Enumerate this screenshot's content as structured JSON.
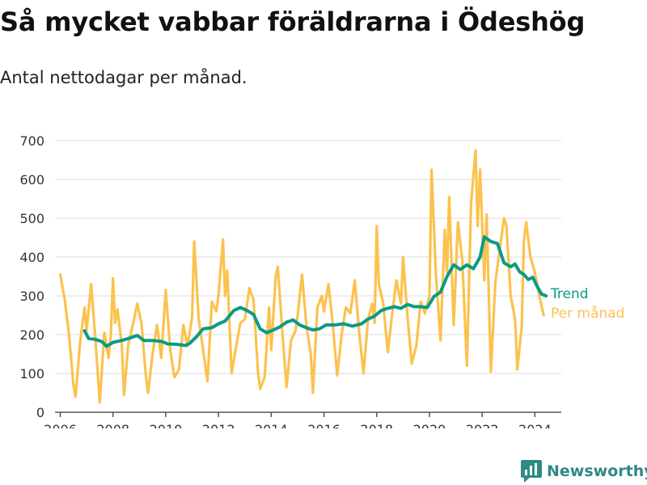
{
  "title": "Så mycket vabbar föräldrarna i Ödeshög",
  "subtitle": "Antal nettodagar per månad.",
  "brand": {
    "name": "Newsworthy"
  },
  "colors": {
    "monthly": "#fcc24e",
    "trend": "#0b9a88",
    "brand": "#2e8a84",
    "grid": "#dcdcdc",
    "axis": "#555555"
  },
  "chart_data": {
    "type": "line",
    "xlabel": "",
    "ylabel": "",
    "ylim": [
      0,
      700
    ],
    "yticks": [
      0,
      100,
      200,
      300,
      400,
      500,
      600,
      700
    ],
    "xlim": [
      2005.8,
      2025.0
    ],
    "xticks": [
      2006,
      2008,
      2010,
      2012,
      2014,
      2016,
      2018,
      2020,
      2022,
      2024
    ],
    "legend_placement": "right end of lines",
    "grid": "horizontal",
    "series": [
      {
        "name": "Per månad",
        "points": [
          [
            2006.0,
            355
          ],
          [
            2006.17,
            290
          ],
          [
            2006.33,
            200
          ],
          [
            2006.5,
            70
          ],
          [
            2006.58,
            40
          ],
          [
            2006.75,
            180
          ],
          [
            2006.92,
            270
          ],
          [
            2007.0,
            210
          ],
          [
            2007.17,
            330
          ],
          [
            2007.33,
            190
          ],
          [
            2007.5,
            25
          ],
          [
            2007.67,
            205
          ],
          [
            2007.83,
            140
          ],
          [
            2007.92,
            200
          ],
          [
            2008.0,
            345
          ],
          [
            2008.08,
            230
          ],
          [
            2008.17,
            265
          ],
          [
            2008.33,
            175
          ],
          [
            2008.42,
            45
          ],
          [
            2008.58,
            175
          ],
          [
            2008.75,
            225
          ],
          [
            2008.92,
            280
          ],
          [
            2009.08,
            230
          ],
          [
            2009.25,
            90
          ],
          [
            2009.33,
            50
          ],
          [
            2009.5,
            150
          ],
          [
            2009.67,
            225
          ],
          [
            2009.83,
            140
          ],
          [
            2010.0,
            315
          ],
          [
            2010.17,
            160
          ],
          [
            2010.33,
            90
          ],
          [
            2010.5,
            110
          ],
          [
            2010.67,
            225
          ],
          [
            2010.83,
            170
          ],
          [
            2011.0,
            245
          ],
          [
            2011.08,
            440
          ],
          [
            2011.25,
            240
          ],
          [
            2011.42,
            160
          ],
          [
            2011.58,
            80
          ],
          [
            2011.75,
            285
          ],
          [
            2011.92,
            260
          ],
          [
            2012.0,
            300
          ],
          [
            2012.17,
            445
          ],
          [
            2012.25,
            300
          ],
          [
            2012.33,
            365
          ],
          [
            2012.5,
            100
          ],
          [
            2012.67,
            170
          ],
          [
            2012.83,
            230
          ],
          [
            2013.0,
            240
          ],
          [
            2013.17,
            320
          ],
          [
            2013.33,
            290
          ],
          [
            2013.5,
            100
          ],
          [
            2013.58,
            60
          ],
          [
            2013.75,
            90
          ],
          [
            2013.92,
            270
          ],
          [
            2014.0,
            160
          ],
          [
            2014.17,
            350
          ],
          [
            2014.25,
            375
          ],
          [
            2014.42,
            210
          ],
          [
            2014.58,
            65
          ],
          [
            2014.75,
            185
          ],
          [
            2014.92,
            210
          ],
          [
            2015.0,
            250
          ],
          [
            2015.17,
            355
          ],
          [
            2015.33,
            225
          ],
          [
            2015.5,
            150
          ],
          [
            2015.58,
            50
          ],
          [
            2015.75,
            270
          ],
          [
            2015.92,
            300
          ],
          [
            2016.0,
            260
          ],
          [
            2016.17,
            330
          ],
          [
            2016.33,
            230
          ],
          [
            2016.5,
            95
          ],
          [
            2016.67,
            200
          ],
          [
            2016.83,
            270
          ],
          [
            2017.0,
            255
          ],
          [
            2017.17,
            340
          ],
          [
            2017.33,
            210
          ],
          [
            2017.5,
            100
          ],
          [
            2017.67,
            240
          ],
          [
            2017.83,
            280
          ],
          [
            2017.92,
            230
          ],
          [
            2018.0,
            480
          ],
          [
            2018.08,
            330
          ],
          [
            2018.25,
            280
          ],
          [
            2018.42,
            155
          ],
          [
            2018.58,
            250
          ],
          [
            2018.75,
            340
          ],
          [
            2018.92,
            280
          ],
          [
            2019.0,
            400
          ],
          [
            2019.17,
            245
          ],
          [
            2019.33,
            125
          ],
          [
            2019.5,
            170
          ],
          [
            2019.67,
            285
          ],
          [
            2019.83,
            255
          ],
          [
            2020.0,
            300
          ],
          [
            2020.08,
            625
          ],
          [
            2020.25,
            350
          ],
          [
            2020.42,
            185
          ],
          [
            2020.58,
            470
          ],
          [
            2020.67,
            360
          ],
          [
            2020.75,
            555
          ],
          [
            2020.92,
            225
          ],
          [
            2021.08,
            490
          ],
          [
            2021.25,
            390
          ],
          [
            2021.42,
            120
          ],
          [
            2021.58,
            540
          ],
          [
            2021.75,
            675
          ],
          [
            2021.83,
            480
          ],
          [
            2021.92,
            625
          ],
          [
            2022.08,
            340
          ],
          [
            2022.17,
            510
          ],
          [
            2022.33,
            105
          ],
          [
            2022.5,
            335
          ],
          [
            2022.67,
            420
          ],
          [
            2022.83,
            500
          ],
          [
            2022.92,
            480
          ],
          [
            2023.08,
            300
          ],
          [
            2023.25,
            240
          ],
          [
            2023.33,
            110
          ],
          [
            2023.5,
            220
          ],
          [
            2023.58,
            440
          ],
          [
            2023.67,
            490
          ],
          [
            2023.83,
            400
          ],
          [
            2024.0,
            360
          ],
          [
            2024.17,
            300
          ],
          [
            2024.33,
            250
          ]
        ]
      },
      {
        "name": "Trend",
        "points": [
          [
            2006.92,
            210
          ],
          [
            2007.08,
            190
          ],
          [
            2007.33,
            188
          ],
          [
            2007.58,
            182
          ],
          [
            2007.75,
            170
          ],
          [
            2008.0,
            180
          ],
          [
            2008.33,
            185
          ],
          [
            2008.58,
            190
          ],
          [
            2008.92,
            198
          ],
          [
            2009.17,
            185
          ],
          [
            2009.5,
            185
          ],
          [
            2009.83,
            183
          ],
          [
            2010.08,
            176
          ],
          [
            2010.42,
            175
          ],
          [
            2010.75,
            172
          ],
          [
            2010.92,
            178
          ],
          [
            2011.17,
            195
          ],
          [
            2011.42,
            215
          ],
          [
            2011.75,
            218
          ],
          [
            2012.0,
            228
          ],
          [
            2012.25,
            235
          ],
          [
            2012.58,
            262
          ],
          [
            2012.83,
            270
          ],
          [
            2013.08,
            262
          ],
          [
            2013.33,
            252
          ],
          [
            2013.58,
            215
          ],
          [
            2013.83,
            205
          ],
          [
            2014.08,
            212
          ],
          [
            2014.33,
            220
          ],
          [
            2014.58,
            232
          ],
          [
            2014.83,
            238
          ],
          [
            2015.08,
            225
          ],
          [
            2015.33,
            218
          ],
          [
            2015.58,
            212
          ],
          [
            2015.83,
            215
          ],
          [
            2016.08,
            225
          ],
          [
            2016.42,
            225
          ],
          [
            2016.75,
            228
          ],
          [
            2017.08,
            222
          ],
          [
            2017.42,
            228
          ],
          [
            2017.67,
            240
          ],
          [
            2017.92,
            248
          ],
          [
            2018.17,
            262
          ],
          [
            2018.42,
            268
          ],
          [
            2018.67,
            272
          ],
          [
            2018.92,
            268
          ],
          [
            2019.17,
            278
          ],
          [
            2019.42,
            272
          ],
          [
            2019.67,
            272
          ],
          [
            2019.92,
            270
          ],
          [
            2020.17,
            298
          ],
          [
            2020.42,
            310
          ],
          [
            2020.67,
            350
          ],
          [
            2020.92,
            380
          ],
          [
            2021.17,
            368
          ],
          [
            2021.42,
            380
          ],
          [
            2021.67,
            370
          ],
          [
            2021.92,
            400
          ],
          [
            2022.08,
            452
          ],
          [
            2022.33,
            440
          ],
          [
            2022.58,
            435
          ],
          [
            2022.83,
            385
          ],
          [
            2023.08,
            375
          ],
          [
            2023.25,
            382
          ],
          [
            2023.42,
            362
          ],
          [
            2023.58,
            355
          ],
          [
            2023.75,
            342
          ],
          [
            2023.92,
            348
          ],
          [
            2024.08,
            325
          ],
          [
            2024.25,
            305
          ],
          [
            2024.42,
            300
          ]
        ]
      }
    ]
  }
}
